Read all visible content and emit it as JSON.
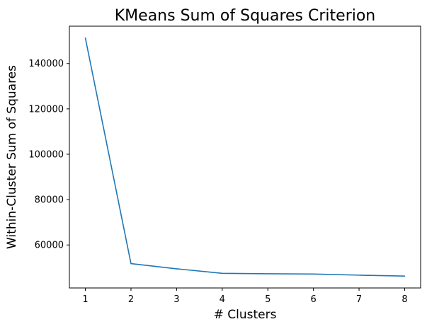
{
  "chart_data": {
    "type": "line",
    "title": "KMeans Sum of Squares Criterion",
    "xlabel": "# Clusters",
    "ylabel": "Within-Cluster Sum of Squares",
    "x": [
      1,
      2,
      3,
      4,
      5,
      6,
      7,
      8
    ],
    "series": [
      {
        "values": [
          151200,
          51800,
          49500,
          47500,
          47300,
          47200,
          46700,
          46300
        ],
        "color": "#1f77b4"
      }
    ],
    "x_ticks": [
      1,
      2,
      3,
      4,
      5,
      6,
      7,
      8
    ],
    "y_ticks": [
      60000,
      80000,
      100000,
      120000,
      140000
    ],
    "xlim": [
      0.65,
      8.35
    ],
    "ylim": [
      41050,
      156450
    ],
    "grid": false,
    "legend": "none"
  }
}
